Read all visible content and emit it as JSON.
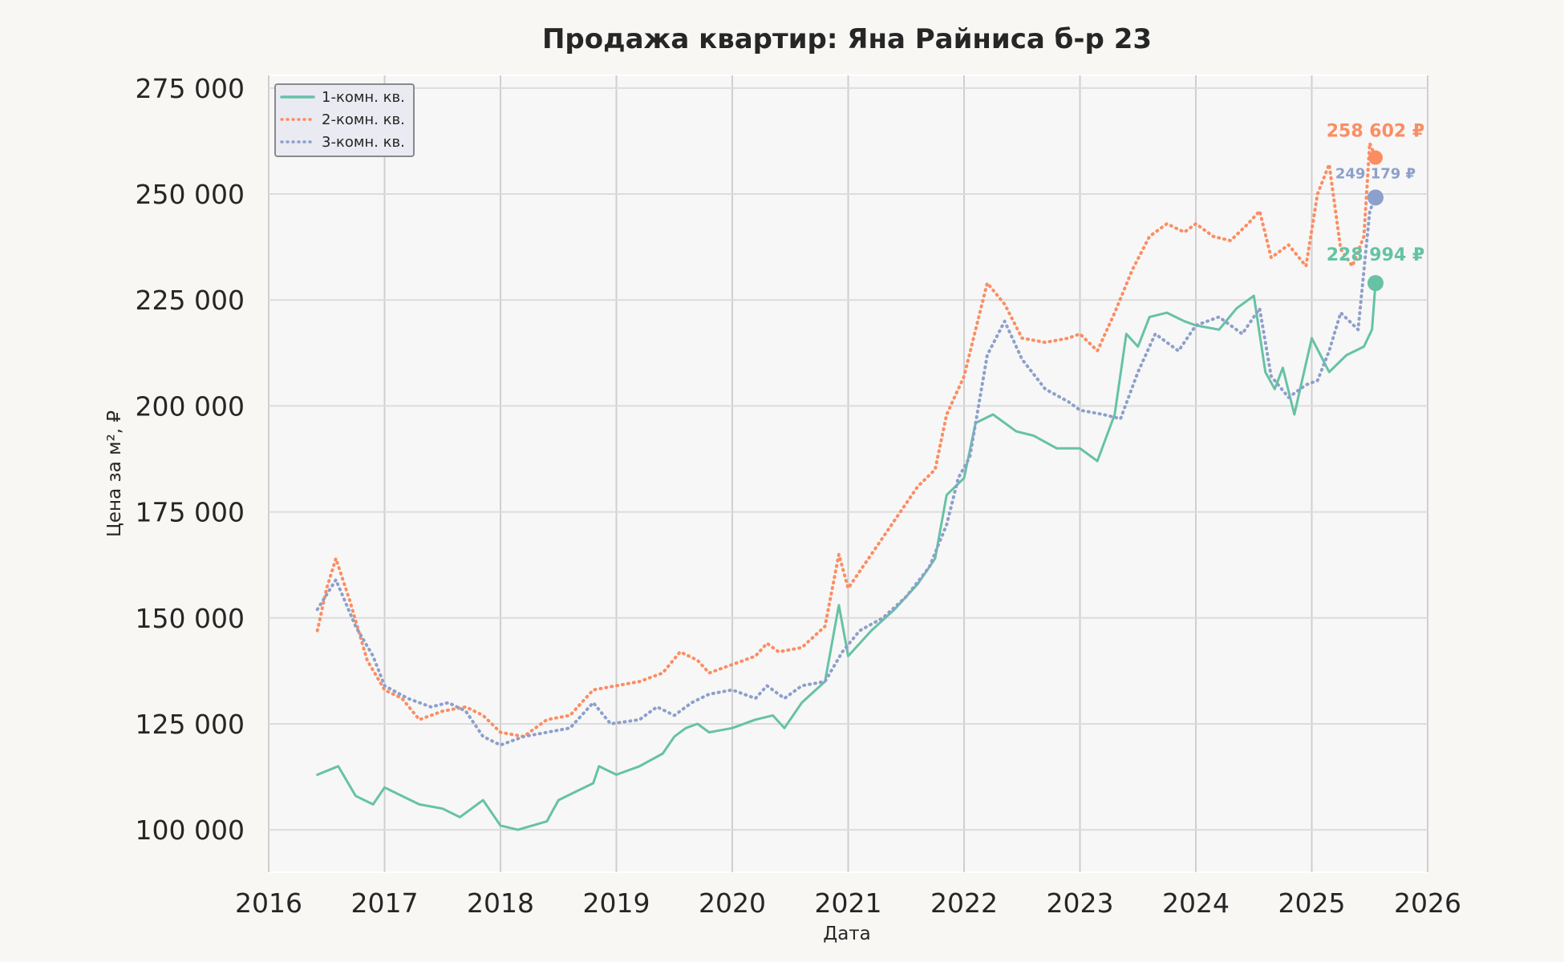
{
  "chart_data": {
    "type": "line",
    "title": "Продажа квартир: Яна Райниса б-р 23",
    "xlabel": "Дата",
    "ylabel": "Цена за м², ₽",
    "xlim": [
      2016.0,
      2026.0
    ],
    "ylim": [
      90000,
      278000
    ],
    "x_ticks": [
      "2016",
      "2017",
      "2018",
      "2019",
      "2020",
      "2021",
      "2022",
      "2023",
      "2024",
      "2025",
      "2026"
    ],
    "y_ticks": [
      "100 000",
      "125 000",
      "150 000",
      "175 000",
      "200 000",
      "225 000",
      "250 000",
      "275 000"
    ],
    "grid": true,
    "legend_position": "top-left",
    "series": [
      {
        "name": "1-комн. кв.",
        "color": "#66c2a5",
        "style": "solid",
        "end_label": "228 994 ₽",
        "end_value": 228994,
        "x": [
          2016.42,
          2016.6,
          2016.75,
          2016.9,
          2017.0,
          2017.3,
          2017.5,
          2017.65,
          2017.85,
          2018.0,
          2018.15,
          2018.4,
          2018.5,
          2018.65,
          2018.8,
          2018.85,
          2019.0,
          2019.2,
          2019.4,
          2019.5,
          2019.6,
          2019.7,
          2019.8,
          2020.0,
          2020.2,
          2020.35,
          2020.45,
          2020.6,
          2020.8,
          2020.92,
          2021.0,
          2021.2,
          2021.4,
          2021.6,
          2021.75,
          2021.85,
          2022.0,
          2022.1,
          2022.25,
          2022.45,
          2022.6,
          2022.8,
          2023.0,
          2023.15,
          2023.3,
          2023.4,
          2023.5,
          2023.6,
          2023.75,
          2023.9,
          2024.0,
          2024.2,
          2024.35,
          2024.5,
          2024.6,
          2024.68,
          2024.75,
          2024.85,
          2025.0,
          2025.15,
          2025.3,
          2025.45,
          2025.52,
          2025.55
        ],
        "y": [
          113000,
          115000,
          108000,
          106000,
          110000,
          106000,
          105000,
          103000,
          107000,
          101000,
          100000,
          102000,
          107000,
          109000,
          111000,
          115000,
          113000,
          115000,
          118000,
          122000,
          124000,
          125000,
          123000,
          124000,
          126000,
          127000,
          124000,
          130000,
          135000,
          153000,
          141000,
          147000,
          152000,
          158000,
          164000,
          179000,
          183000,
          196000,
          198000,
          194000,
          193000,
          190000,
          190000,
          187000,
          198000,
          217000,
          214000,
          221000,
          222000,
          220000,
          219000,
          218000,
          223000,
          226000,
          208000,
          204000,
          209000,
          198000,
          216000,
          208000,
          212000,
          214000,
          218000,
          229000
        ]
      },
      {
        "name": "2-комн. кв.",
        "color": "#fc8d62",
        "style": "dotted",
        "end_label": "258 602 ₽",
        "end_value": 258602,
        "x": [
          2016.42,
          2016.5,
          2016.58,
          2016.7,
          2016.85,
          2017.0,
          2017.15,
          2017.3,
          2017.5,
          2017.7,
          2017.85,
          2018.0,
          2018.2,
          2018.4,
          2018.6,
          2018.8,
          2019.0,
          2019.2,
          2019.4,
          2019.55,
          2019.7,
          2019.8,
          2020.0,
          2020.2,
          2020.3,
          2020.4,
          2020.6,
          2020.8,
          2020.92,
          2021.0,
          2021.2,
          2021.4,
          2021.6,
          2021.75,
          2021.85,
          2022.0,
          2022.1,
          2022.2,
          2022.35,
          2022.5,
          2022.7,
          2022.9,
          2023.0,
          2023.15,
          2023.3,
          2023.45,
          2023.6,
          2023.75,
          2023.9,
          2024.0,
          2024.15,
          2024.3,
          2024.45,
          2024.55,
          2024.65,
          2024.8,
          2024.95,
          2025.05,
          2025.15,
          2025.25,
          2025.35,
          2025.45,
          2025.5,
          2025.55
        ],
        "y": [
          147000,
          157000,
          164000,
          154000,
          140000,
          133000,
          131000,
          126000,
          128000,
          129000,
          127000,
          123000,
          122000,
          126000,
          127000,
          133000,
          134000,
          135000,
          137000,
          142000,
          140000,
          137000,
          139000,
          141000,
          144000,
          142000,
          143000,
          148000,
          165000,
          157000,
          165000,
          173000,
          181000,
          185000,
          198000,
          207000,
          218000,
          229000,
          224000,
          216000,
          215000,
          216000,
          217000,
          213000,
          222000,
          232000,
          240000,
          243000,
          241000,
          243000,
          240000,
          239000,
          243000,
          246000,
          235000,
          238000,
          233000,
          250000,
          257000,
          237000,
          233000,
          240000,
          262000,
          258602
        ]
      },
      {
        "name": "3-комн. кв.",
        "color": "#8da0cb",
        "style": "dotted",
        "end_label": "249 179 ₽",
        "end_value": 249179,
        "x": [
          2016.42,
          2016.58,
          2016.75,
          2016.9,
          2017.0,
          2017.2,
          2017.4,
          2017.55,
          2017.7,
          2017.85,
          2018.0,
          2018.2,
          2018.4,
          2018.6,
          2018.8,
          2018.95,
          2019.2,
          2019.35,
          2019.5,
          2019.65,
          2019.8,
          2020.0,
          2020.2,
          2020.3,
          2020.45,
          2020.6,
          2020.8,
          2020.95,
          2021.1,
          2021.3,
          2021.5,
          2021.7,
          2021.85,
          2021.95,
          2022.05,
          2022.2,
          2022.35,
          2022.5,
          2022.7,
          2022.9,
          2023.0,
          2023.2,
          2023.35,
          2023.5,
          2023.65,
          2023.85,
          2024.0,
          2024.2,
          2024.4,
          2024.55,
          2024.65,
          2024.8,
          2024.95,
          2025.05,
          2025.15,
          2025.25,
          2025.4,
          2025.5,
          2025.55
        ],
        "y": [
          152000,
          159000,
          148000,
          141000,
          134000,
          131000,
          129000,
          130000,
          128000,
          122000,
          120000,
          122000,
          123000,
          124000,
          130000,
          125000,
          126000,
          129000,
          127000,
          130000,
          132000,
          133000,
          131000,
          134000,
          131000,
          134000,
          135000,
          142000,
          147000,
          150000,
          155000,
          162000,
          172000,
          183000,
          188000,
          212000,
          220000,
          211000,
          204000,
          201000,
          199000,
          198000,
          197000,
          208000,
          217000,
          213000,
          219000,
          221000,
          217000,
          223000,
          207000,
          202000,
          205000,
          206000,
          213000,
          222000,
          218000,
          246000,
          249179
        ]
      }
    ]
  }
}
